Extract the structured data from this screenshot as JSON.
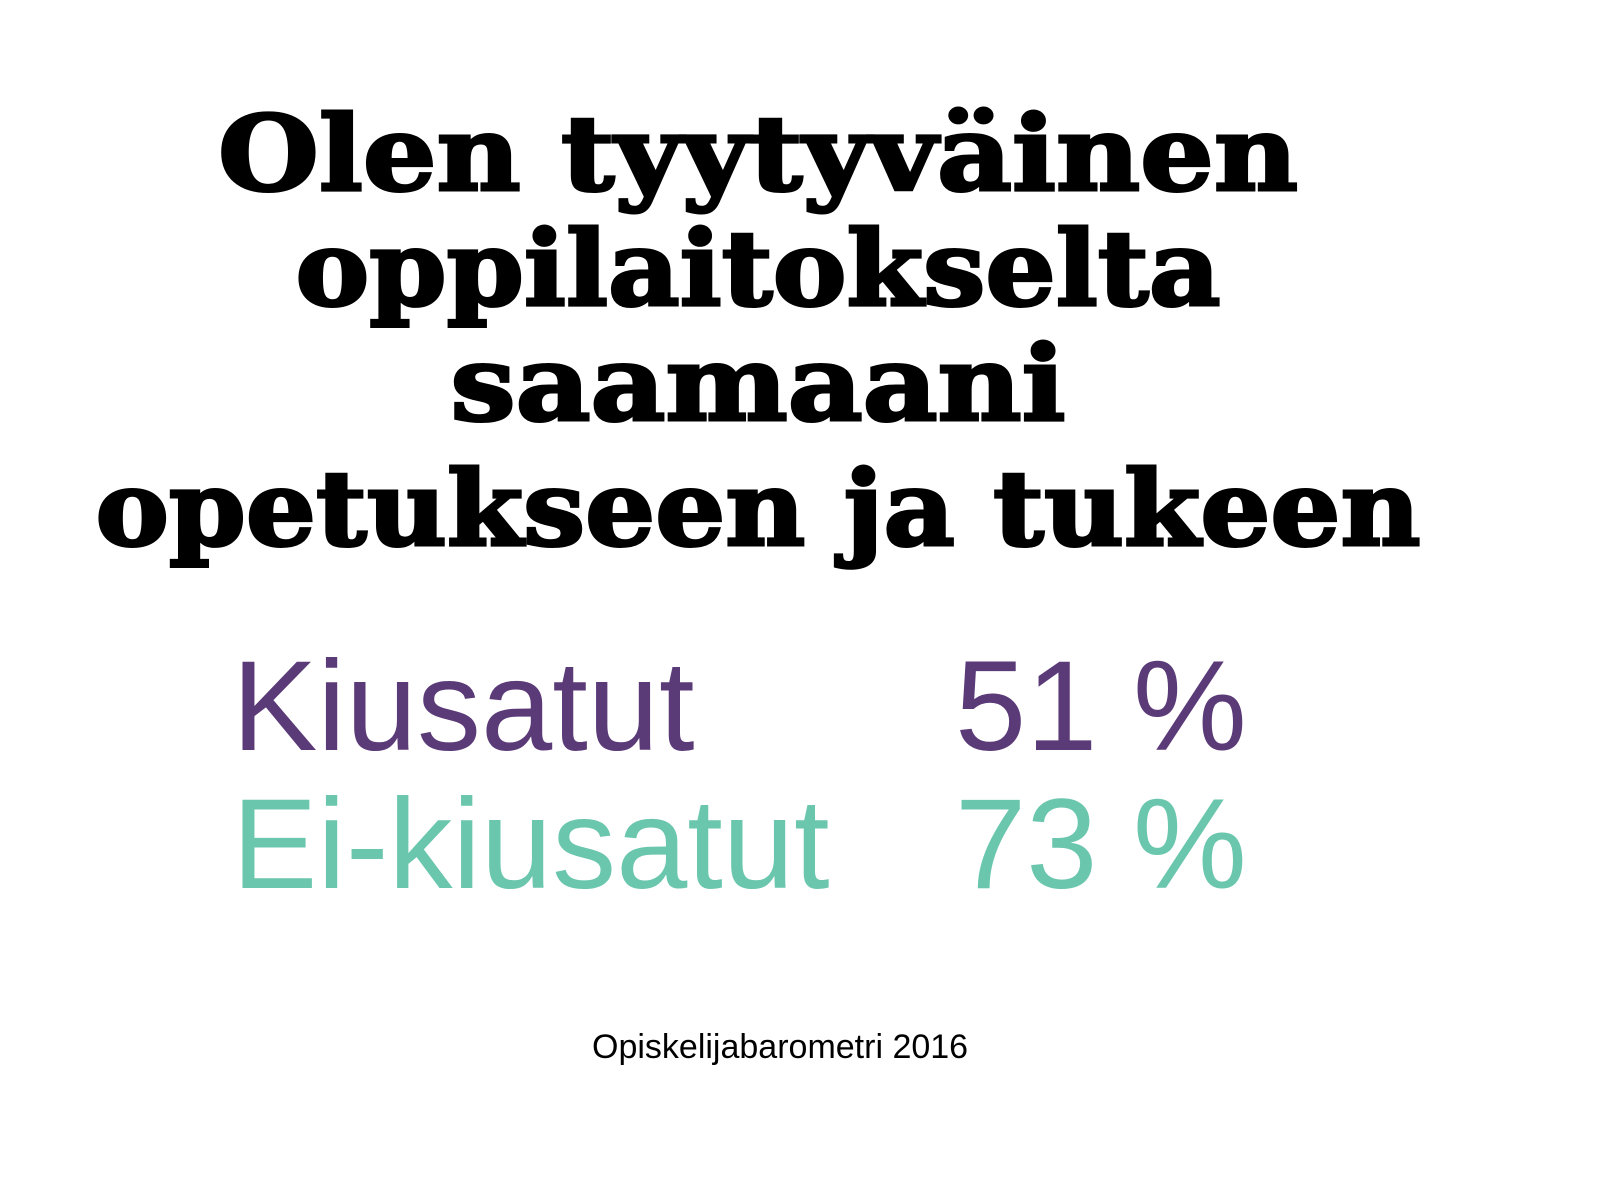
{
  "title": {
    "lines": [
      "Olen tyytyväinen",
      "oppilaitokselta",
      "saamaani",
      "opetukseen ja tukeen"
    ]
  },
  "rows": [
    {
      "label": "Kiusatut",
      "value": "51 %"
    },
    {
      "label": "Ei-kiusatut",
      "value": "73 %"
    }
  ],
  "source": "Opiskelijabarometri 2016"
}
